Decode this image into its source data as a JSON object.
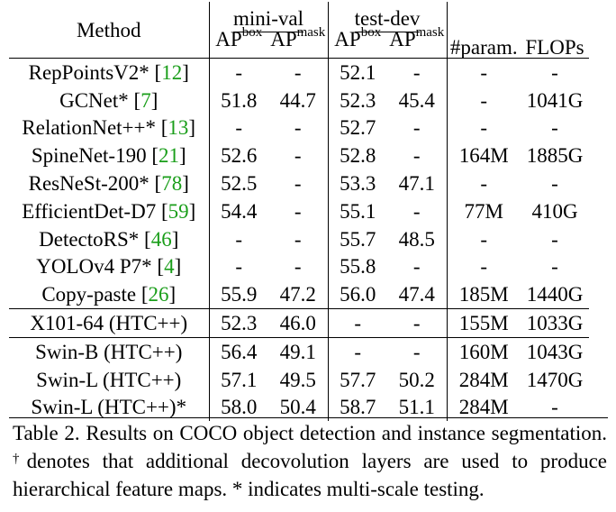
{
  "table": {
    "header": {
      "method": "Method",
      "minival": "mini-val",
      "testdev": "test-dev",
      "ap": "AP",
      "box": "box",
      "mask": "mask",
      "params": "#param.",
      "flops": "FLOPs"
    },
    "rows": [
      {
        "name": "RepPointsV2*",
        "ref": "12",
        "mv_box": "-",
        "mv_mask": "-",
        "td_box": "52.1",
        "td_mask": "-",
        "params": "-",
        "flops": "-"
      },
      {
        "name": "GCNet*",
        "ref": "7",
        "mv_box": "51.8",
        "mv_mask": "44.7",
        "td_box": "52.3",
        "td_mask": "45.4",
        "params": "-",
        "flops": "1041G"
      },
      {
        "name": "RelationNet++*",
        "ref": "13",
        "mv_box": "-",
        "mv_mask": "-",
        "td_box": "52.7",
        "td_mask": "-",
        "params": "-",
        "flops": "-"
      },
      {
        "name": "SpineNet-190",
        "ref": "21",
        "mv_box": "52.6",
        "mv_mask": "-",
        "td_box": "52.8",
        "td_mask": "-",
        "params": "164M",
        "flops": "1885G"
      },
      {
        "name": "ResNeSt-200*",
        "ref": "78",
        "mv_box": "52.5",
        "mv_mask": "-",
        "td_box": "53.3",
        "td_mask": "47.1",
        "params": "-",
        "flops": "-"
      },
      {
        "name": "EfficientDet-D7",
        "ref": "59",
        "mv_box": "54.4",
        "mv_mask": "-",
        "td_box": "55.1",
        "td_mask": "-",
        "params": "77M",
        "flops": "410G"
      },
      {
        "name": "DetectoRS*",
        "ref": "46",
        "mv_box": "-",
        "mv_mask": "-",
        "td_box": "55.7",
        "td_mask": "48.5",
        "params": "-",
        "flops": "-"
      },
      {
        "name": "YOLOv4 P7*",
        "ref": "4",
        "mv_box": "-",
        "mv_mask": "-",
        "td_box": "55.8",
        "td_mask": "-",
        "params": "-",
        "flops": "-"
      },
      {
        "name": "Copy-paste",
        "ref": "26",
        "mv_box": "55.9",
        "mv_mask": "47.2",
        "td_box": "56.0",
        "td_mask": "47.4",
        "params": "185M",
        "flops": "1440G"
      },
      {
        "name": "X101-64 (HTC++)",
        "ref": "",
        "mv_box": "52.3",
        "mv_mask": "46.0",
        "td_box": "-",
        "td_mask": "-",
        "params": "155M",
        "flops": "1033G"
      },
      {
        "name": "Swin-B (HTC++)",
        "ref": "",
        "mv_box": "56.4",
        "mv_mask": "49.1",
        "td_box": "-",
        "td_mask": "-",
        "params": "160M",
        "flops": "1043G"
      },
      {
        "name": "Swin-L (HTC++)",
        "ref": "",
        "mv_box": "57.1",
        "mv_mask": "49.5",
        "td_box": "57.7",
        "td_mask": "50.2",
        "params": "284M",
        "flops": "1470G"
      },
      {
        "name": "Swin-L (HTC++)*",
        "ref": "",
        "mv_box": "58.0",
        "mv_mask": "50.4",
        "td_box": "58.7",
        "td_mask": "51.1",
        "params": "284M",
        "flops": "-"
      }
    ]
  },
  "caption": {
    "part1": "Table 2. Results on COCO object detection and instance segmentation.",
    "dagger": "†",
    "part2": "denotes that additional decovolution layers are used to produce hierarchical feature maps. * indicates multi-scale testing."
  }
}
